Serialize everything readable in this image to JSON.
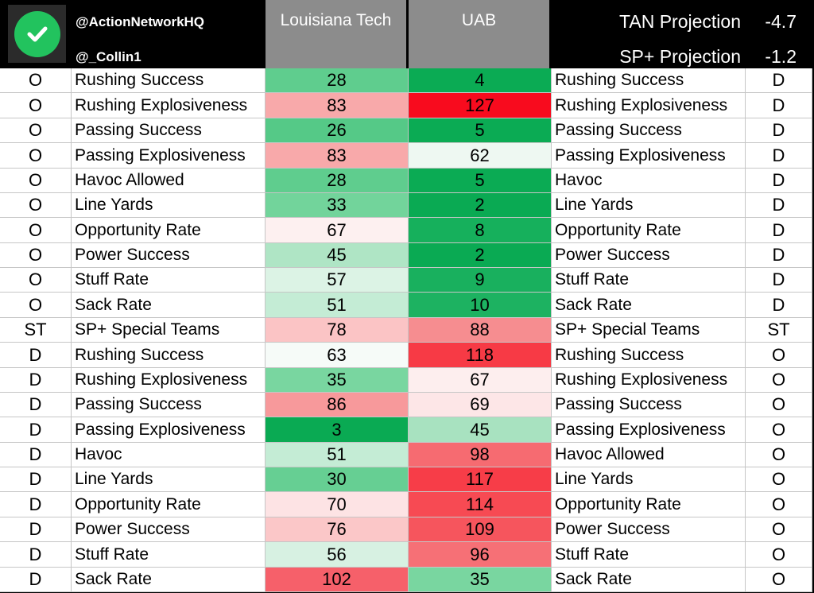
{
  "header": {
    "handle1": "@ActionNetworkHQ",
    "handle2": "@_Collin1",
    "team1": "Louisiana Tech",
    "team2": "UAB",
    "projections": [
      {
        "label": "TAN Projection",
        "value": "-4.7"
      },
      {
        "label": "SP+ Projection",
        "value": "-1.2"
      }
    ]
  },
  "rows": [
    {
      "side_left": "O",
      "label_left": "Rushing Success",
      "v1": "28",
      "v2": "4",
      "label_right": "Rushing Success",
      "side_right": "D",
      "c1": "#5fcd8e",
      "c2": "#0bab54"
    },
    {
      "side_left": "O",
      "label_left": "Rushing Explosiveness",
      "v1": "83",
      "v2": "127",
      "label_right": "Rushing Explosiveness",
      "side_right": "D",
      "c1": "#f8a9aa",
      "c2": "#f80b1e"
    },
    {
      "side_left": "O",
      "label_left": "Passing Success",
      "v1": "26",
      "v2": "5",
      "label_right": "Passing Success",
      "side_right": "D",
      "c1": "#55c987",
      "c2": "#0bab54"
    },
    {
      "side_left": "O",
      "label_left": "Passing Explosiveness",
      "v1": "83",
      "v2": "62",
      "label_right": "Passing Explosiveness",
      "side_right": "D",
      "c1": "#f8a9aa",
      "c2": "#eef8f2"
    },
    {
      "side_left": "O",
      "label_left": "Havoc Allowed",
      "v1": "28",
      "v2": "5",
      "label_right": "Havoc",
      "side_right": "D",
      "c1": "#5fcd8e",
      "c2": "#0bab54"
    },
    {
      "side_left": "O",
      "label_left": "Line Yards",
      "v1": "33",
      "v2": "2",
      "label_right": "Line Yards",
      "side_right": "D",
      "c1": "#72d49b",
      "c2": "#0aaa53"
    },
    {
      "side_left": "O",
      "label_left": "Opportunity Rate",
      "v1": "67",
      "v2": "8",
      "label_right": "Opportunity Rate",
      "side_right": "D",
      "c1": "#fdf0f0",
      "c2": "#16b05c"
    },
    {
      "side_left": "O",
      "label_left": "Power Success",
      "v1": "45",
      "v2": "2",
      "label_right": "Power Success",
      "side_right": "D",
      "c1": "#afe5c5",
      "c2": "#0aaa53"
    },
    {
      "side_left": "O",
      "label_left": "Stuff Rate",
      "v1": "57",
      "v2": "9",
      "label_right": "Stuff Rate",
      "side_right": "D",
      "c1": "#dcf3e5",
      "c2": "#19b05e"
    },
    {
      "side_left": "O",
      "label_left": "Sack Rate",
      "v1": "51",
      "v2": "10",
      "label_right": "Sack Rate",
      "side_right": "D",
      "c1": "#c4ecd5",
      "c2": "#1db261"
    },
    {
      "side_left": "ST",
      "label_left": "SP+ Special Teams",
      "v1": "78",
      "v2": "88",
      "label_right": "SP+ Special Teams",
      "side_right": "ST",
      "c1": "#fbc4c5",
      "c2": "#f68d90"
    },
    {
      "side_left": "D",
      "label_left": "Rushing Success",
      "v1": "63",
      "v2": "118",
      "label_right": "Rushing Success",
      "side_right": "O",
      "c1": "#f6fbf8",
      "c2": "#f73a45"
    },
    {
      "side_left": "D",
      "label_left": "Rushing Explosiveness",
      "v1": "35",
      "v2": "67",
      "label_right": "Rushing Explosiveness",
      "side_right": "O",
      "c1": "#79d6a0",
      "c2": "#fdeeee"
    },
    {
      "side_left": "D",
      "label_left": "Passing Success",
      "v1": "86",
      "v2": "69",
      "label_right": "Passing Success",
      "side_right": "O",
      "c1": "#f7999b",
      "c2": "#fde6e7"
    },
    {
      "side_left": "D",
      "label_left": "Passing Explosiveness",
      "v1": "3",
      "v2": "45",
      "label_right": "Passing Explosiveness",
      "side_right": "O",
      "c1": "#0aaa53",
      "c2": "#a8e2c0"
    },
    {
      "side_left": "D",
      "label_left": "Havoc",
      "v1": "51",
      "v2": "98",
      "label_right": "Havoc Allowed",
      "side_right": "O",
      "c1": "#c4ecd5",
      "c2": "#f66b71"
    },
    {
      "side_left": "D",
      "label_left": "Line Yards",
      "v1": "30",
      "v2": "117",
      "label_right": "Line Yards",
      "side_right": "O",
      "c1": "#66cf93",
      "c2": "#f73d48"
    },
    {
      "side_left": "D",
      "label_left": "Opportunity Rate",
      "v1": "70",
      "v2": "114",
      "label_right": "Opportunity Rate",
      "side_right": "O",
      "c1": "#fde3e4",
      "c2": "#f74a53"
    },
    {
      "side_left": "D",
      "label_left": "Power Success",
      "v1": "76",
      "v2": "109",
      "label_right": "Power Success",
      "side_right": "O",
      "c1": "#fbc7c8",
      "c2": "#f6555d"
    },
    {
      "side_left": "D",
      "label_left": "Stuff Rate",
      "v1": "56",
      "v2": "96",
      "label_right": "Stuff Rate",
      "side_right": "O",
      "c1": "#d7f1e2",
      "c2": "#f67076"
    },
    {
      "side_left": "D",
      "label_left": "Sack Rate",
      "v1": "102",
      "v2": "35",
      "label_right": "Sack Rate",
      "side_right": "O",
      "c1": "#f6606a",
      "c2": "#79d6a0"
    }
  ]
}
